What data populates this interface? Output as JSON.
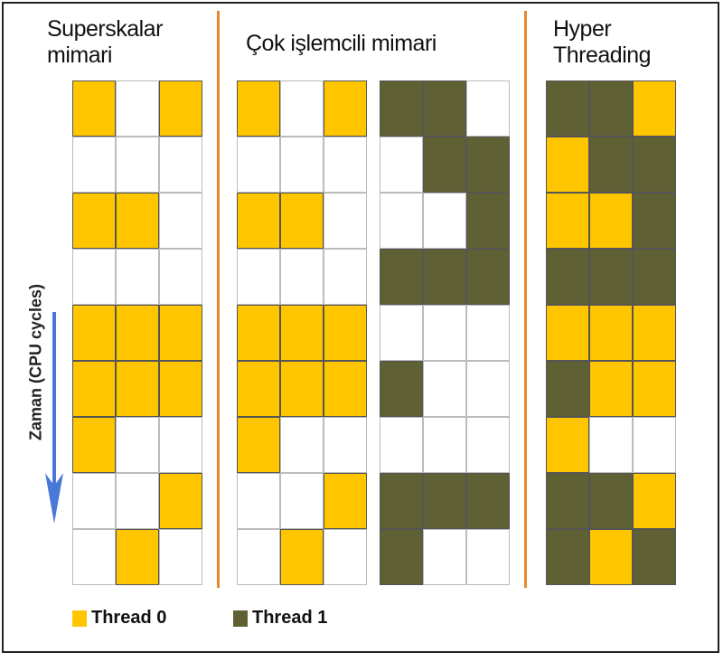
{
  "titles": {
    "superscalar": [
      "Superskalar",
      "mimari"
    ],
    "multiprocessor": "Çok işlemcili mimari",
    "hyperthreading": [
      "Hyper",
      "Threading"
    ]
  },
  "axis_label": "Zaman (CPU cycles)",
  "legend": [
    {
      "label": "Thread 0",
      "color": "#ffc600"
    },
    {
      "label": "Thread 1",
      "color": "#5f6034"
    }
  ],
  "colors": {
    "divider": "#e8892c",
    "arrow": "#4a78d8"
  },
  "cell_key": "0 = Thread 0, 1 = Thread 1, null = idle",
  "grids": {
    "superscalar": [
      [
        0,
        null,
        0
      ],
      [
        null,
        null,
        null
      ],
      [
        0,
        0,
        null
      ],
      [
        null,
        null,
        null
      ],
      [
        0,
        0,
        0
      ],
      [
        0,
        0,
        0
      ],
      [
        0,
        null,
        null
      ],
      [
        null,
        null,
        0
      ],
      [
        null,
        0,
        null
      ]
    ],
    "multiprocessor_cpu1": [
      [
        0,
        null,
        0
      ],
      [
        null,
        null,
        null
      ],
      [
        0,
        0,
        null
      ],
      [
        null,
        null,
        null
      ],
      [
        0,
        0,
        0
      ],
      [
        0,
        0,
        0
      ],
      [
        0,
        null,
        null
      ],
      [
        null,
        null,
        0
      ],
      [
        null,
        0,
        null
      ]
    ],
    "multiprocessor_cpu2": [
      [
        1,
        1,
        null
      ],
      [
        null,
        1,
        1
      ],
      [
        null,
        null,
        1
      ],
      [
        1,
        1,
        1
      ],
      [
        null,
        null,
        null
      ],
      [
        1,
        null,
        null
      ],
      [
        null,
        null,
        null
      ],
      [
        1,
        1,
        1
      ],
      [
        1,
        null,
        null
      ]
    ],
    "hyperthreading": [
      [
        1,
        1,
        0
      ],
      [
        0,
        1,
        1
      ],
      [
        0,
        0,
        1
      ],
      [
        1,
        1,
        1
      ],
      [
        0,
        0,
        0
      ],
      [
        1,
        0,
        0
      ],
      [
        0,
        null,
        null
      ],
      [
        1,
        1,
        0
      ],
      [
        1,
        0,
        1
      ]
    ]
  }
}
